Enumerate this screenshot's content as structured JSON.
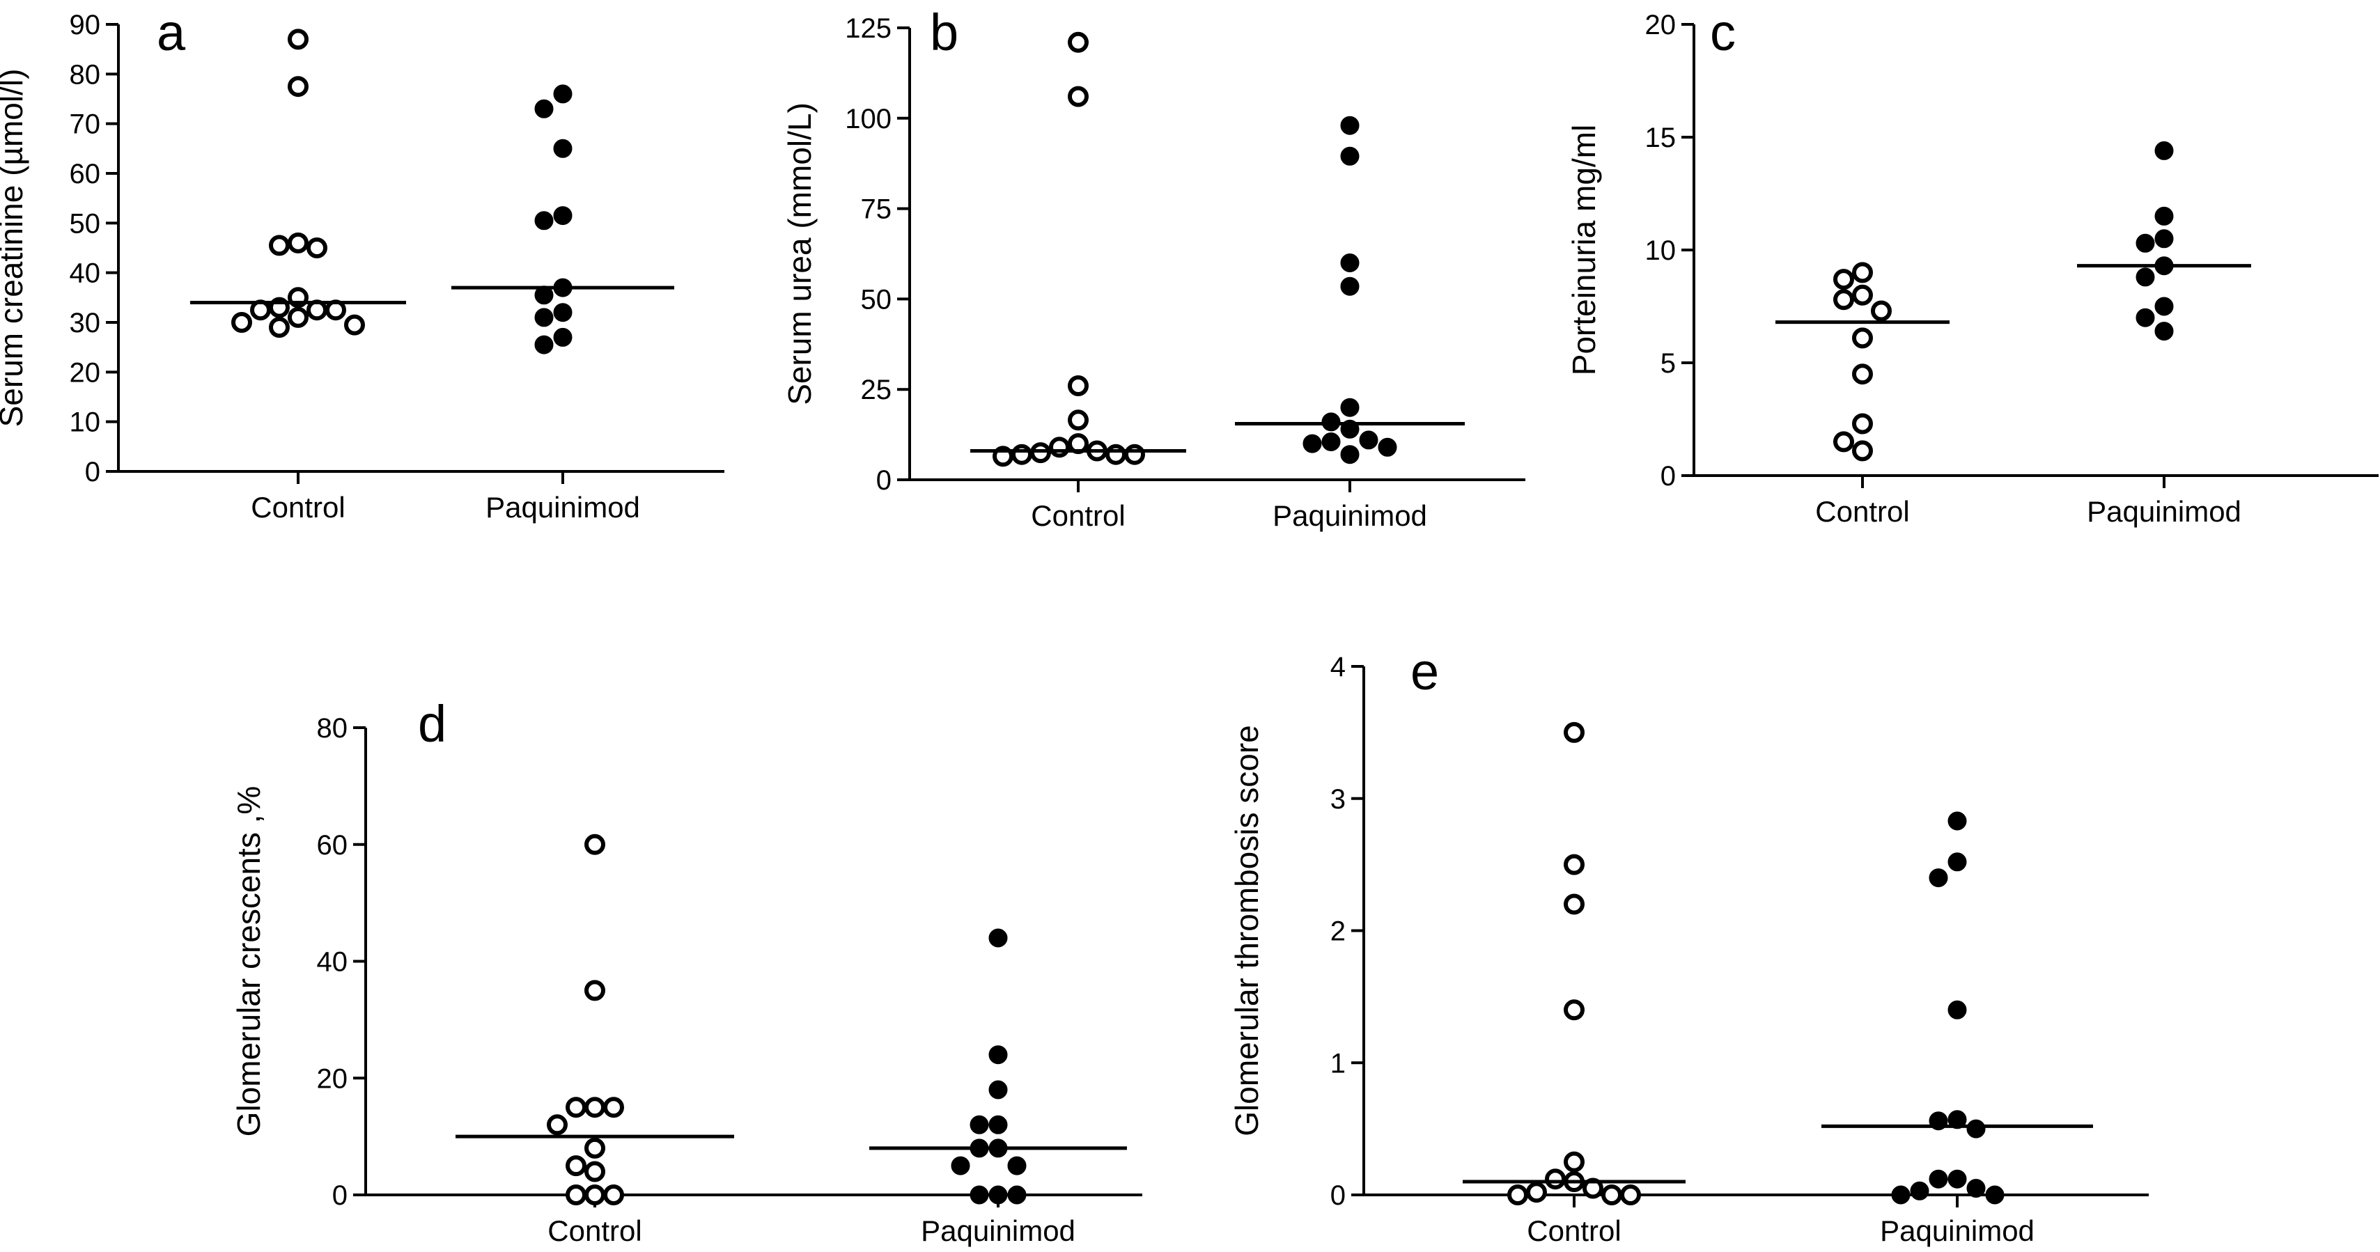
{
  "chart_data": [
    {
      "panel": "a",
      "type": "scatter",
      "ylabel": "Serum creatinine (µmol/l)",
      "ylim": [
        0,
        90
      ],
      "yticks": [
        0,
        10,
        20,
        30,
        40,
        50,
        60,
        70,
        80,
        90
      ],
      "categories": [
        "Control",
        "Paquinimod"
      ],
      "series": [
        {
          "category": "Control",
          "marker": "open",
          "values": [
            87,
            77.5,
            46,
            45.5,
            45,
            35,
            32.5,
            32.5,
            31,
            30,
            29,
            29.5,
            32.5,
            33
          ],
          "median": 34
        },
        {
          "category": "Paquinimod",
          "marker": "filled",
          "values": [
            76,
            73,
            65,
            51.5,
            50.5,
            37,
            35.5,
            32,
            31,
            27,
            25.5
          ],
          "median": 37
        }
      ]
    },
    {
      "panel": "b",
      "type": "scatter",
      "ylabel": "Serum urea (mmol/L)",
      "ylim": [
        0,
        125
      ],
      "yticks": [
        0,
        25,
        50,
        75,
        100,
        125
      ],
      "categories": [
        "Control",
        "Paquinimod"
      ],
      "series": [
        {
          "category": "Control",
          "marker": "open",
          "values": [
            121,
            106,
            26,
            16.5,
            10,
            9,
            8,
            7.5,
            7,
            7,
            7,
            6.5
          ],
          "median": 8
        },
        {
          "category": "Paquinimod",
          "marker": "filled",
          "values": [
            98,
            89.5,
            60,
            53.5,
            20,
            16,
            14,
            11,
            10.5,
            10,
            9,
            7
          ],
          "median": 15.5
        }
      ]
    },
    {
      "panel": "c",
      "type": "scatter",
      "ylabel": "Porteinuria mg/ml",
      "ylim": [
        0,
        20
      ],
      "yticks": [
        0,
        5,
        10,
        15,
        20
      ],
      "categories": [
        "Control",
        "Paquinimod"
      ],
      "series": [
        {
          "category": "Control",
          "marker": "open",
          "values": [
            9,
            8.7,
            8,
            7.8,
            7.3,
            6.1,
            4.5,
            2.3,
            1.5,
            1.1
          ],
          "median": 6.8
        },
        {
          "category": "Paquinimod",
          "marker": "filled",
          "values": [
            14.4,
            11.5,
            10.5,
            10.3,
            9.3,
            8.8,
            7.5,
            7,
            6.4
          ],
          "median": 9.3
        }
      ]
    },
    {
      "panel": "d",
      "type": "scatter",
      "ylabel": "Glomerular crescents ,%",
      "ylim": [
        0,
        80
      ],
      "yticks": [
        0,
        20,
        40,
        60,
        80
      ],
      "categories": [
        "Control",
        "Paquinimod"
      ],
      "series": [
        {
          "category": "Control",
          "marker": "open",
          "values": [
            60,
            35,
            15,
            15,
            15,
            12,
            8,
            5,
            4,
            0,
            0,
            0
          ],
          "median": 10
        },
        {
          "category": "Paquinimod",
          "marker": "filled",
          "values": [
            44,
            24,
            18,
            12,
            12,
            8,
            8,
            5,
            5,
            0,
            0,
            0
          ],
          "median": 8
        }
      ]
    },
    {
      "panel": "e",
      "type": "scatter",
      "ylabel": "Glomerular thrombosis score",
      "ylim": [
        0,
        4
      ],
      "yticks": [
        0,
        1,
        2,
        3,
        4
      ],
      "categories": [
        "Control",
        "Paquinimod"
      ],
      "series": [
        {
          "category": "Control",
          "marker": "open",
          "values": [
            3.5,
            2.5,
            2.2,
            1.4,
            0.25,
            0.12,
            0.1,
            0.05,
            0.02,
            0,
            0,
            0
          ],
          "median": 0.1
        },
        {
          "category": "Paquinimod",
          "marker": "filled",
          "values": [
            2.83,
            2.52,
            2.4,
            1.4,
            0.57,
            0.56,
            0.5,
            0.12,
            0.12,
            0.05,
            0.03,
            0,
            0
          ],
          "median": 0.52
        }
      ]
    }
  ]
}
